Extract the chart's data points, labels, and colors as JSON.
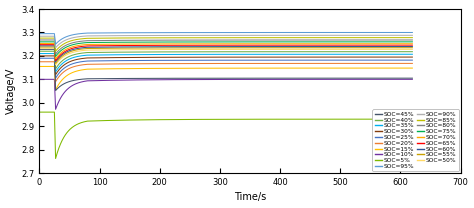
{
  "xlabel": "Time/s",
  "ylabel": "Voltage/V",
  "xlim": [
    0,
    700
  ],
  "ylim": [
    2.7,
    3.4
  ],
  "yticks": [
    2.7,
    2.8,
    2.9,
    3.0,
    3.1,
    3.2,
    3.3,
    3.4
  ],
  "xticks": [
    0,
    100,
    200,
    300,
    400,
    500,
    600,
    700
  ],
  "soc_levels": [
    5,
    10,
    15,
    20,
    25,
    30,
    35,
    40,
    45,
    50,
    55,
    60,
    65,
    70,
    75,
    80,
    85,
    90,
    95
  ],
  "color_map": {
    "5": "#7fba00",
    "10": "#7030a0",
    "15": "#ffc000",
    "20": "#ed7d31",
    "25": "#4472c4",
    "30": "#843c0c",
    "35": "#00b0f0",
    "40": "#70ad47",
    "45": "#44546a",
    "50": "#ffd966",
    "55": "#c8a000",
    "60": "#2f5496",
    "65": "#ff0000",
    "70": "#ffaa00",
    "75": "#00b050",
    "80": "#808080",
    "85": "#bfbf00",
    "90": "#b0b0b0",
    "95": "#5b9bd5"
  },
  "v_init": {
    "5": 2.96,
    "10": 3.1,
    "15": 3.155,
    "20": 3.175,
    "25": 3.19,
    "30": 3.2,
    "35": 3.21,
    "40": 3.22,
    "45": 3.228,
    "50": 3.233,
    "55": 3.238,
    "60": 3.243,
    "65": 3.248,
    "70": 3.253,
    "75": 3.26,
    "80": 3.268,
    "85": 3.276,
    "90": 3.284,
    "95": 3.295
  },
  "v_min": {
    "5": 2.762,
    "10": 2.972,
    "15": 3.055,
    "20": 3.09,
    "25": 3.105,
    "30": 3.12,
    "35": 3.132,
    "40": 3.145,
    "45": 3.052,
    "50": 3.162,
    "55": 3.168,
    "60": 3.175,
    "65": 3.18,
    "70": 3.188,
    "75": 3.198,
    "80": 3.208,
    "85": 3.22,
    "90": 3.235,
    "95": 3.25
  },
  "v_final": {
    "5": 2.93,
    "10": 3.1,
    "15": 3.148,
    "20": 3.168,
    "25": 3.182,
    "30": 3.195,
    "35": 3.207,
    "40": 3.218,
    "45": 3.105,
    "50": 3.228,
    "55": 3.235,
    "60": 3.24,
    "65": 3.246,
    "70": 3.252,
    "75": 3.26,
    "80": 3.268,
    "85": 3.278,
    "90": 3.288,
    "95": 3.3
  },
  "t_step": 25,
  "t_min": 80,
  "t_end": 620,
  "legend_left": [
    [
      "SOC=45%",
      "45"
    ],
    [
      "SOC=40%",
      "40"
    ],
    [
      "SOC=35%",
      "35"
    ],
    [
      "SOC=30%",
      "30"
    ],
    [
      "SOC=25%",
      "25"
    ],
    [
      "SOC=20%",
      "20"
    ],
    [
      "SOC=15%",
      "15"
    ],
    [
      "SOC=10%",
      "10"
    ],
    [
      "SOC=5%",
      "5"
    ]
  ],
  "legend_right": [
    [
      "SOC=95%",
      "95"
    ],
    [
      "SOC=90%",
      "90"
    ],
    [
      "SOC=85%",
      "85"
    ],
    [
      "SOC=80%",
      "80"
    ],
    [
      "SOC=75%",
      "75"
    ],
    [
      "SOC=70%",
      "70"
    ],
    [
      "SOC=65%",
      "65"
    ],
    [
      "SOC=60%",
      "60"
    ],
    [
      "SOC=55%",
      "55"
    ],
    [
      "SOC=50%",
      "50"
    ]
  ]
}
